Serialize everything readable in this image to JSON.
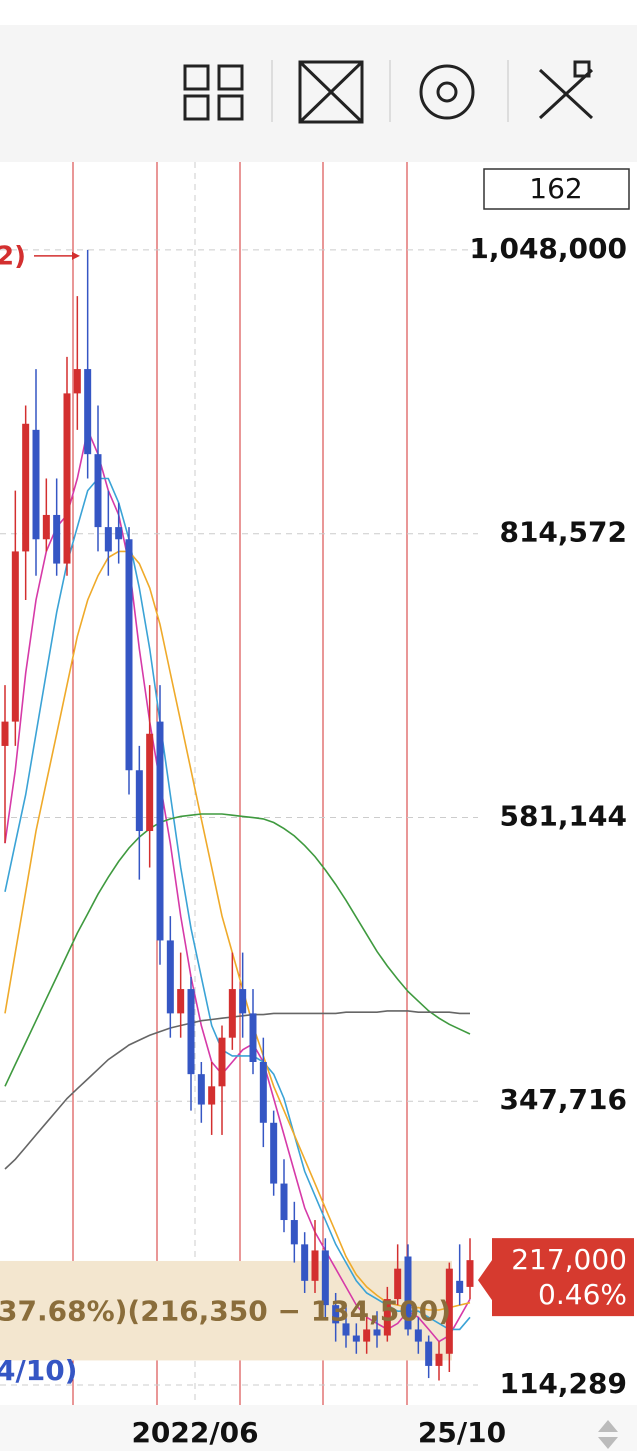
{
  "counter": "162",
  "chart_data": {
    "type": "candlestick",
    "ylim": [
      97850,
      1120333
    ],
    "yticks": [
      {
        "value": 114289,
        "label": "114,289"
      },
      {
        "value": 347716,
        "label": "347,716"
      },
      {
        "value": 581144,
        "label": "581,144"
      },
      {
        "value": 814572,
        "label": "814,572"
      },
      {
        "value": 1048000,
        "label": "1,048,000"
      }
    ],
    "x_labels": [
      "2022/06",
      "25/10"
    ],
    "up_color": "#d32f2f",
    "down_color": "#3556c4",
    "candles": {
      "open": [
        640000,
        660000,
        800000,
        900000,
        810000,
        830000,
        790000,
        930000,
        950000,
        880000,
        820000,
        820000,
        810000,
        620000,
        570000,
        660000,
        480000,
        420000,
        440000,
        370000,
        345000,
        360000,
        400000,
        440000,
        420000,
        380000,
        330000,
        280000,
        250000,
        230000,
        200000,
        225000,
        180000,
        165000,
        155000,
        150000,
        160000,
        155000,
        185000,
        220000,
        160000,
        150000,
        130000,
        140000,
        200000,
        195000
      ],
      "high": [
        690000,
        850000,
        920000,
        950000,
        860000,
        860000,
        960000,
        1010000,
        1048000,
        920000,
        850000,
        840000,
        820000,
        640000,
        690000,
        690000,
        500000,
        470000,
        450000,
        380000,
        380000,
        410000,
        470000,
        470000,
        440000,
        400000,
        340000,
        300000,
        265000,
        240000,
        250000,
        235000,
        190000,
        180000,
        165000,
        170000,
        175000,
        195000,
        230000,
        230000,
        170000,
        155000,
        150000,
        215000,
        230000,
        235000
      ],
      "low": [
        560000,
        640000,
        760000,
        780000,
        800000,
        780000,
        780000,
        900000,
        860000,
        800000,
        780000,
        790000,
        600000,
        530000,
        540000,
        460000,
        400000,
        400000,
        340000,
        330000,
        320000,
        320000,
        390000,
        400000,
        370000,
        310000,
        270000,
        240000,
        215000,
        190000,
        190000,
        170000,
        150000,
        145000,
        140000,
        140000,
        145000,
        150000,
        180000,
        155000,
        140000,
        120000,
        118000,
        125000,
        180000,
        185000
      ],
      "close": [
        660000,
        800000,
        905000,
        810000,
        830000,
        790000,
        930000,
        950000,
        880000,
        820000,
        800000,
        810000,
        620000,
        570000,
        650000,
        480000,
        420000,
        440000,
        370000,
        345000,
        360000,
        400000,
        440000,
        420000,
        380000,
        330000,
        280000,
        250000,
        230000,
        200000,
        225000,
        180000,
        165000,
        155000,
        150000,
        160000,
        155000,
        185000,
        210000,
        160000,
        150000,
        130000,
        140000,
        210000,
        190000,
        217000
      ]
    },
    "series": [
      {
        "color": "#d63aa8",
        "values": [
          560000,
          620000,
          700000,
          760000,
          800000,
          820000,
          830000,
          860000,
          900000,
          880000,
          850000,
          830000,
          790000,
          720000,
          660000,
          610000,
          560000,
          500000,
          450000,
          410000,
          380000,
          370000,
          380000,
          390000,
          395000,
          380000,
          350000,
          320000,
          290000,
          260000,
          240000,
          225000,
          210000,
          195000,
          180000,
          170000,
          165000,
          160000,
          165000,
          175000,
          170000,
          160000,
          150000,
          155000,
          170000,
          185000
        ]
      },
      {
        "color": "#3ba3d6",
        "values": [
          520000,
          560000,
          600000,
          650000,
          700000,
          750000,
          790000,
          820000,
          850000,
          860000,
          860000,
          840000,
          810000,
          770000,
          720000,
          660000,
          600000,
          540000,
          490000,
          450000,
          410000,
          390000,
          385000,
          385000,
          385000,
          380000,
          370000,
          350000,
          320000,
          290000,
          270000,
          250000,
          230000,
          215000,
          200000,
          190000,
          185000,
          180000,
          175000,
          175000,
          175000,
          170000,
          165000,
          160000,
          160000,
          170000
        ]
      },
      {
        "color": "#efaa2a",
        "values": [
          420000,
          470000,
          520000,
          570000,
          610000,
          650000,
          690000,
          730000,
          760000,
          780000,
          795000,
          800000,
          800000,
          790000,
          770000,
          740000,
          700000,
          660000,
          620000,
          580000,
          540000,
          500000,
          470000,
          440000,
          410000,
          385000,
          360000,
          340000,
          320000,
          300000,
          280000,
          260000,
          240000,
          220000,
          205000,
          195000,
          188000,
          182000,
          180000,
          178000,
          178000,
          176000,
          176000,
          178000,
          180000,
          182000
        ]
      },
      {
        "color": "#3f9a3f",
        "values": [
          360000,
          378000,
          396000,
          414000,
          432000,
          450000,
          468000,
          486000,
          502000,
          518000,
          532000,
          545000,
          556000,
          565000,
          572000,
          577000,
          580000,
          582000,
          583000,
          584000,
          584000,
          584000,
          583000,
          582000,
          581000,
          580000,
          577000,
          572000,
          566000,
          558000,
          549000,
          538000,
          526000,
          513000,
          499000,
          485000,
          471000,
          459000,
          448000,
          438000,
          430000,
          422000,
          416000,
          411000,
          407000,
          403000
        ]
      },
      {
        "color": "#666666",
        "values": [
          292000,
          300000,
          310000,
          320000,
          330000,
          340000,
          350000,
          358000,
          366000,
          374000,
          382000,
          388000,
          394000,
          398000,
          402000,
          405000,
          408000,
          410000,
          412000,
          414000,
          415000,
          416000,
          417000,
          418000,
          419000,
          419000,
          420000,
          420000,
          420000,
          420000,
          420000,
          420000,
          420000,
          421000,
          421000,
          421000,
          421000,
          422000,
          422000,
          422000,
          421000,
          421000,
          421000,
          421000,
          420000,
          420000
        ]
      }
    ],
    "range_band": [
      134500,
      216350
    ],
    "range_text": "37.68%)(216,350 − 134,500)",
    "high_marker": "2)",
    "low_marker": "4/10)",
    "price_tag": {
      "value": 217000,
      "label": "217,000"
    },
    "change_label": "0.46%"
  }
}
